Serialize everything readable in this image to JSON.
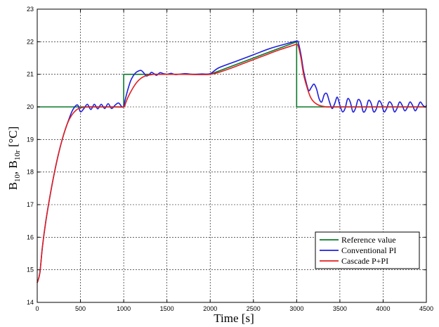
{
  "chart_data": {
    "type": "line",
    "xlabel": "Time [s]",
    "ylabel": "B10, B10r [°C]",
    "ylabel_parts": {
      "b1": "B",
      "s1": "10",
      "sep": ", B",
      "s2": "10r",
      "unit": " [°C]"
    },
    "xlim": [
      0,
      4500
    ],
    "ylim": [
      14,
      23
    ],
    "xticks": [
      "0",
      "500",
      "1000",
      "1500",
      "2000",
      "2500",
      "3000",
      "3500",
      "4000",
      "4500"
    ],
    "yticks": [
      "14",
      "15",
      "16",
      "17",
      "18",
      "19",
      "20",
      "21",
      "22",
      "23"
    ],
    "grid": true,
    "legend_position": "bottom-right",
    "series": [
      {
        "name": "Reference value",
        "color": "#0a7a2a",
        "x": [
          0,
          1000,
          1000,
          2000,
          3000,
          3000,
          4500
        ],
        "y": [
          20,
          20,
          21,
          21,
          22,
          20,
          20
        ]
      },
      {
        "name": "Conventional PI",
        "color": "#1f1fdc",
        "x": [
          0,
          30,
          60,
          100,
          150,
          200,
          250,
          300,
          350,
          400,
          440,
          470,
          500,
          540,
          580,
          620,
          660,
          700,
          740,
          780,
          820,
          860,
          900,
          940,
          980,
          1000,
          1020,
          1050,
          1080,
          1110,
          1140,
          1170,
          1200,
          1230,
          1260,
          1290,
          1320,
          1350,
          1380,
          1420,
          1460,
          1500,
          1550,
          1600,
          1700,
          1800,
          1900,
          2000,
          2100,
          2300,
          2500,
          2700,
          2900,
          3000,
          3020,
          3050,
          3080,
          3110,
          3140,
          3170,
          3200,
          3230,
          3260,
          3290,
          3320,
          3350,
          3380,
          3410,
          3440,
          3470,
          3500,
          3530,
          3560,
          3590,
          3620,
          3650,
          3680,
          3710,
          3740,
          3770,
          3800,
          3830,
          3860,
          3890,
          3920,
          3950,
          3980,
          4010,
          4040,
          4070,
          4100,
          4130,
          4160,
          4190,
          4220,
          4250,
          4280,
          4310,
          4340,
          4370,
          4400,
          4430,
          4460,
          4490,
          4500
        ],
        "y": [
          14.6,
          14.9,
          15.7,
          16.5,
          17.3,
          18.0,
          18.6,
          19.1,
          19.5,
          19.85,
          20.02,
          20.05,
          19.85,
          19.95,
          20.08,
          19.92,
          20.08,
          19.94,
          20.08,
          19.95,
          20.1,
          19.95,
          20.05,
          20.12,
          20.0,
          20.02,
          20.25,
          20.55,
          20.8,
          20.95,
          21.05,
          21.1,
          21.12,
          21.05,
          20.95,
          20.98,
          21.06,
          21.02,
          20.97,
          21.05,
          21.02,
          21.0,
          21.03,
          20.99,
          21.02,
          21.0,
          21.01,
          21.02,
          21.2,
          21.4,
          21.6,
          21.8,
          21.95,
          22.02,
          21.96,
          21.6,
          21.1,
          20.75,
          20.5,
          20.6,
          20.7,
          20.55,
          20.25,
          20.15,
          20.38,
          20.4,
          20.15,
          19.95,
          20.1,
          20.3,
          20.05,
          19.85,
          19.95,
          20.25,
          20.15,
          19.85,
          19.95,
          20.22,
          20.15,
          19.85,
          19.92,
          20.2,
          20.12,
          19.85,
          19.93,
          20.18,
          20.1,
          19.85,
          19.95,
          20.15,
          20.08,
          19.85,
          19.95,
          20.15,
          20.05,
          19.88,
          19.98,
          20.15,
          20.05,
          19.88,
          20.0,
          20.15,
          20.05,
          20.0,
          20.05
        ],
        "smooth": true
      },
      {
        "name": "Cascade P+PI",
        "color": "#e02020",
        "x": [
          0,
          30,
          60,
          100,
          150,
          200,
          250,
          300,
          350,
          400,
          450,
          500,
          600,
          700,
          800,
          900,
          1000,
          1020,
          1050,
          1100,
          1150,
          1200,
          1250,
          1300,
          1350,
          1400,
          1500,
          1700,
          2000,
          2200,
          2400,
          2600,
          2800,
          2950,
          3000,
          3020,
          3050,
          3080,
          3120,
          3160,
          3200,
          3250,
          3300,
          3350,
          3400,
          3600,
          4000,
          4500
        ],
        "y": [
          14.6,
          14.9,
          15.7,
          16.5,
          17.3,
          18.0,
          18.6,
          19.1,
          19.5,
          19.75,
          19.9,
          19.97,
          20.0,
          20.0,
          20.0,
          20.0,
          20.0,
          20.1,
          20.3,
          20.55,
          20.75,
          20.88,
          20.95,
          20.98,
          21.0,
          21.0,
          21.0,
          21.0,
          21.0,
          21.15,
          21.35,
          21.55,
          21.75,
          21.88,
          21.92,
          21.85,
          21.5,
          21.0,
          20.6,
          20.3,
          20.15,
          20.06,
          20.02,
          20.0,
          20.0,
          20.0,
          20.0,
          20.0
        ],
        "smooth": true
      }
    ]
  }
}
